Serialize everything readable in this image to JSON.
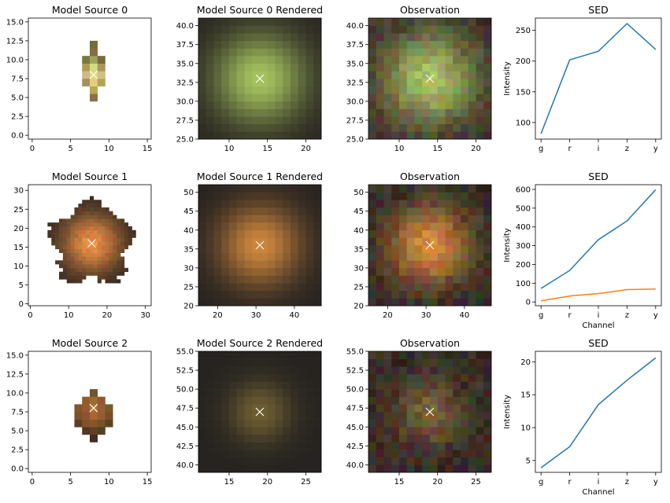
{
  "chart_data": [
    {
      "id": "m0",
      "type": "heatmap",
      "title": "Model Source 0",
      "xlim": [
        -0.5,
        15.5
      ],
      "ylim": [
        -0.5,
        15.5
      ],
      "xticks": [
        0,
        5,
        10,
        15
      ],
      "yticks": [
        0.0,
        2.5,
        5.0,
        7.5,
        10.0,
        12.5,
        15.0
      ],
      "ytick_format": 1,
      "marker": {
        "x": 8,
        "y": 8
      },
      "kind": "model",
      "rows": "m0"
    },
    {
      "id": "r0",
      "type": "heatmap",
      "title": "Model Source 0 Rendered",
      "xlim": [
        6,
        22
      ],
      "ylim": [
        25,
        41
      ],
      "xticks": [
        10,
        15,
        20
      ],
      "yticks": [
        25.0,
        27.5,
        30.0,
        32.5,
        35.0,
        37.5,
        40.0
      ],
      "ytick_format": 1,
      "marker": {
        "x": 14,
        "y": 33
      },
      "kind": "render",
      "glow": {
        "x": 14,
        "y": 33,
        "sigma": 4.2,
        "color": [
          165,
          195,
          95
        ],
        "bg": [
          40,
          36,
          32
        ]
      }
    },
    {
      "id": "o0",
      "type": "heatmap",
      "title": "Observation",
      "xlim": [
        6,
        22
      ],
      "ylim": [
        25,
        41
      ],
      "xticks": [
        10,
        15,
        20
      ],
      "yticks": [
        25.0,
        27.5,
        30.0,
        32.5,
        35.0,
        37.5,
        40.0
      ],
      "ytick_format": 1,
      "marker": {
        "x": 14,
        "y": 33
      },
      "kind": "observation",
      "glow": {
        "x": 14,
        "y": 33,
        "sigma": 4.4,
        "color": [
          170,
          195,
          100
        ],
        "bg": [
          55,
          40,
          40
        ]
      }
    },
    {
      "id": "s0",
      "type": "line",
      "title": "SED",
      "xlabel": "",
      "ylabel": "Intensity",
      "categories": [
        "g",
        "r",
        "i",
        "z",
        "y"
      ],
      "ylim": [
        73,
        270
      ],
      "yticks": [
        100,
        150,
        200,
        250
      ],
      "series": [
        {
          "values": [
            82,
            202,
            216,
            261,
            219
          ],
          "color": "#1f77b4"
        }
      ]
    },
    {
      "id": "m1",
      "type": "heatmap",
      "title": "Model Source 1",
      "xlim": [
        -0.5,
        31.5
      ],
      "ylim": [
        -0.5,
        31.5
      ],
      "xticks": [
        0,
        10,
        20,
        30
      ],
      "yticks": [
        0,
        5,
        10,
        15,
        20,
        25,
        30
      ],
      "ytick_format": 0,
      "marker": {
        "x": 16,
        "y": 16
      },
      "kind": "model",
      "rows": "m1"
    },
    {
      "id": "r1",
      "type": "heatmap",
      "title": "Model Source 1 Rendered",
      "xlim": [
        15,
        47
      ],
      "ylim": [
        20,
        52
      ],
      "xticks": [
        20,
        30,
        40
      ],
      "yticks": [
        20,
        25,
        30,
        35,
        40,
        45,
        50
      ],
      "ytick_format": 0,
      "marker": {
        "x": 31,
        "y": 36
      },
      "kind": "render",
      "glow": {
        "x": 31,
        "y": 36,
        "sigma": 7.5,
        "color": [
          205,
          135,
          60
        ],
        "bg": [
          38,
          34,
          32
        ]
      }
    },
    {
      "id": "o1",
      "type": "heatmap",
      "title": "Observation",
      "xlim": [
        15,
        47
      ],
      "ylim": [
        20,
        52
      ],
      "xticks": [
        20,
        30,
        40
      ],
      "yticks": [
        20,
        25,
        30,
        35,
        40,
        45,
        50
      ],
      "ytick_format": 0,
      "marker": {
        "x": 31,
        "y": 36
      },
      "kind": "observation",
      "glow": {
        "x": 31,
        "y": 36,
        "sigma": 7.5,
        "color": [
          215,
          140,
          60
        ],
        "bg": [
          45,
          40,
          38
        ]
      }
    },
    {
      "id": "s1",
      "type": "line",
      "title": "SED",
      "xlabel": "Channel",
      "ylabel": "Intensity",
      "categories": [
        "g",
        "r",
        "i",
        "z",
        "y"
      ],
      "ylim": [
        -20,
        625
      ],
      "yticks": [
        0,
        100,
        200,
        300,
        400,
        500,
        600
      ],
      "series": [
        {
          "values": [
            72,
            168,
            332,
            432,
            598
          ],
          "color": "#1f77b4"
        },
        {
          "values": [
            6,
            32,
            45,
            66,
            69
          ],
          "color": "#ff7f0e"
        }
      ]
    },
    {
      "id": "m2",
      "type": "heatmap",
      "title": "Model Source 2",
      "xlim": [
        -0.5,
        15.5
      ],
      "ylim": [
        -0.5,
        15.5
      ],
      "xticks": [
        0,
        5,
        10,
        15
      ],
      "yticks": [
        0.0,
        2.5,
        5.0,
        7.5,
        10.0,
        12.5,
        15.0
      ],
      "ytick_format": 1,
      "marker": {
        "x": 8,
        "y": 8
      },
      "kind": "model",
      "rows": "m2"
    },
    {
      "id": "r2",
      "type": "heatmap",
      "title": "Model Source 2 Rendered",
      "xlim": [
        11,
        27
      ],
      "ylim": [
        39,
        55
      ],
      "xticks": [
        15,
        20,
        25
      ],
      "yticks": [
        40.0,
        42.5,
        45.0,
        47.5,
        50.0,
        52.5,
        55.0
      ],
      "ytick_format": 1,
      "marker": {
        "x": 19,
        "y": 47
      },
      "kind": "render",
      "glow": {
        "x": 19,
        "y": 47,
        "sigma": 2.8,
        "color": [
          110,
          95,
          50
        ],
        "bg": [
          38,
          35,
          32
        ]
      }
    },
    {
      "id": "o2",
      "type": "heatmap",
      "title": "Observation",
      "xlim": [
        11,
        27
      ],
      "ylim": [
        39,
        55
      ],
      "xticks": [
        15,
        20,
        25
      ],
      "yticks": [
        40.0,
        42.5,
        45.0,
        47.5,
        50.0,
        52.5,
        55.0
      ],
      "ytick_format": 1,
      "marker": {
        "x": 19,
        "y": 47
      },
      "kind": "observation",
      "glow": {
        "x": 19,
        "y": 47,
        "sigma": 3.0,
        "color": [
          120,
          100,
          55
        ],
        "bg": [
          55,
          42,
          38
        ]
      }
    },
    {
      "id": "s2",
      "type": "line",
      "title": "SED",
      "xlabel": "Channel",
      "ylabel": "Intensity",
      "categories": [
        "g",
        "r",
        "i",
        "z",
        "y"
      ],
      "ylim": [
        3.2,
        21.6
      ],
      "yticks": [
        5,
        10,
        15,
        20
      ],
      "series": [
        {
          "values": [
            3.9,
            7.1,
            13.5,
            17.2,
            20.6
          ],
          "color": "#1f77b4"
        }
      ]
    }
  ]
}
